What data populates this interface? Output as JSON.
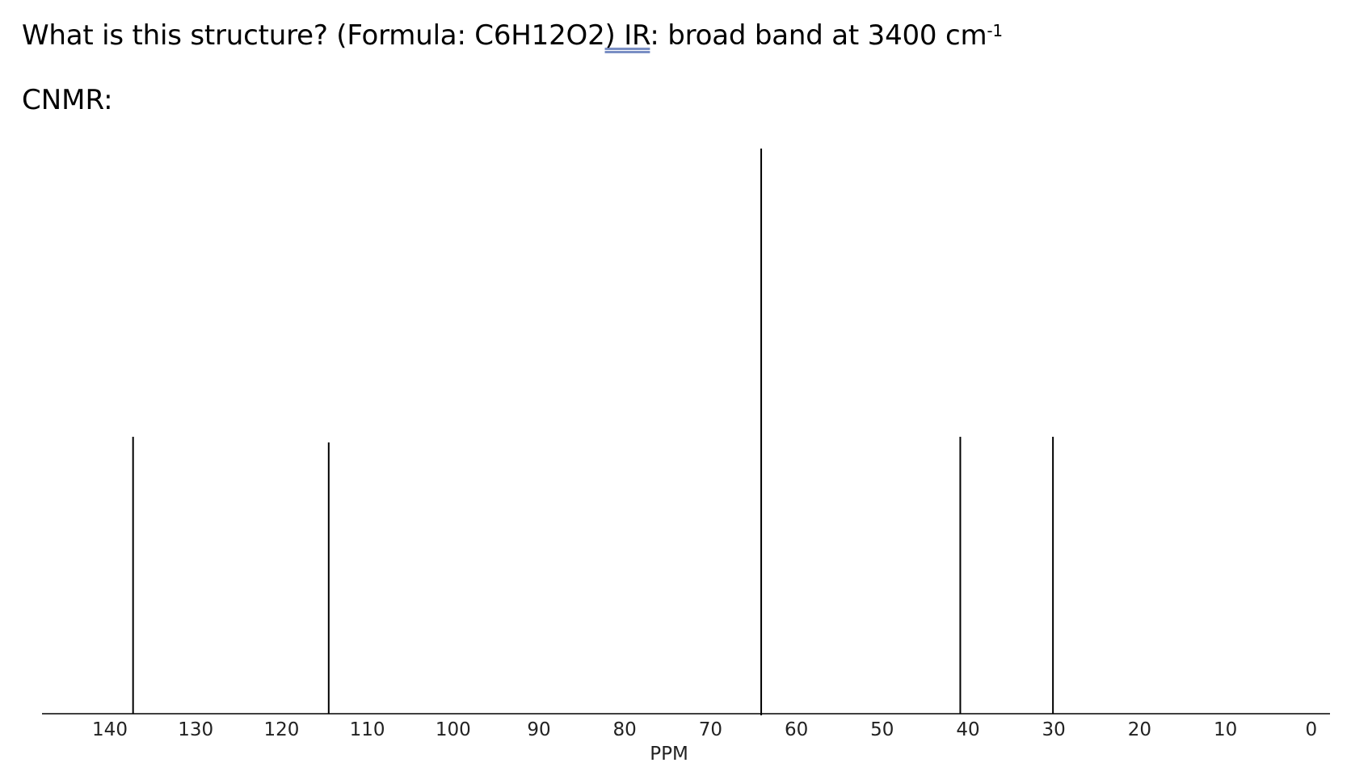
{
  "question": {
    "prefix": "What is this structure? (Formula: C6H12O2",
    "underlined": ")  IR",
    "suffix": ": broad band at 3400 cm",
    "superscript": "-1"
  },
  "cnmr_label": "CNMR:",
  "chart_data": {
    "type": "bar",
    "xlabel": "PPM",
    "ylabel": "",
    "title": "",
    "x_reversed": true,
    "xlim": [
      143.5,
      0
    ],
    "ticks": [
      140,
      130,
      120,
      110,
      100,
      90,
      80,
      70,
      60,
      50,
      40,
      30,
      20,
      10,
      0
    ],
    "tick_labels": [
      "140",
      "130",
      "120",
      "110",
      "100",
      "90",
      "80",
      "70",
      "60",
      "50",
      "40",
      "30",
      "20",
      "10",
      "0"
    ],
    "peaks": [
      {
        "ppm": 137.3,
        "relative_intensity": 0.49
      },
      {
        "ppm": 114.5,
        "relative_intensity": 0.48
      },
      {
        "ppm": 64.1,
        "relative_intensity": 1.0
      },
      {
        "ppm": 40.9,
        "relative_intensity": 0.49
      },
      {
        "ppm": 30.1,
        "relative_intensity": 0.49
      }
    ],
    "grid": false,
    "colors": {
      "line": "#000000",
      "text": "#222222"
    }
  }
}
